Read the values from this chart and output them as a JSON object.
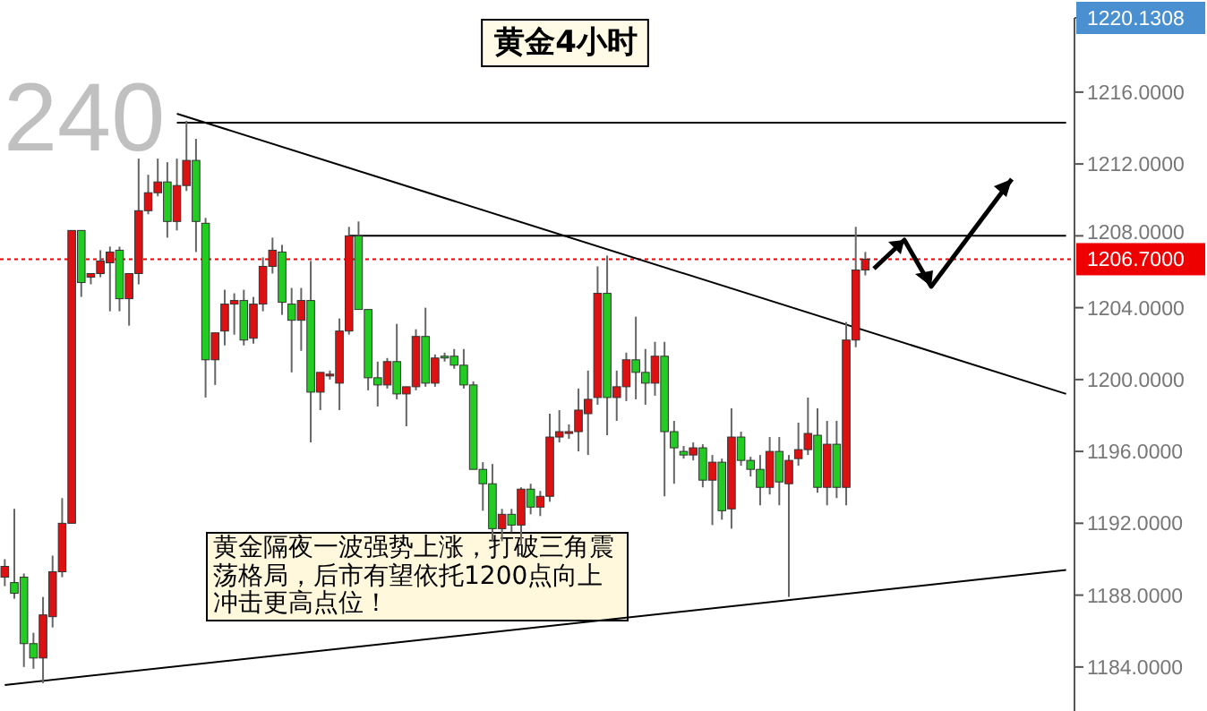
{
  "chart_data": {
    "type": "candlestick",
    "title": "黄金4小时",
    "categories": [
      null,
      null,
      null,
      null,
      null,
      null,
      null,
      null,
      null,
      null,
      null,
      null,
      null,
      null,
      null,
      null,
      null,
      null,
      null,
      null,
      null,
      null,
      null,
      null,
      null,
      null,
      null,
      null,
      null,
      null,
      null,
      null,
      null,
      null,
      null,
      null,
      null,
      null,
      null,
      null,
      null,
      null,
      null,
      null,
      null,
      null,
      null,
      null,
      null,
      null,
      null,
      null,
      null,
      null,
      null,
      null,
      null,
      null,
      null,
      null,
      null,
      null,
      null,
      null,
      null,
      null,
      null,
      null,
      null,
      null,
      null,
      null,
      null,
      null,
      null,
      null,
      null,
      null,
      null,
      null,
      null,
      null,
      null,
      null,
      null,
      null,
      null,
      null,
      null,
      null,
      null,
      null,
      null,
      null,
      null,
      null,
      null,
      null,
      null,
      null,
      null,
      null,
      null,
      null,
      null,
      null,
      null,
      null,
      null,
      null,
      null,
      null
    ],
    "ohlc": [
      [
        1189.0,
        1190.0,
        1188.5,
        1189.6
      ],
      [
        1188.7,
        1192.8,
        1187.8,
        1188.1
      ],
      [
        1189.0,
        1189.2,
        1184.0,
        1185.3
      ],
      [
        1185.3,
        1185.9,
        1183.9,
        1184.5
      ],
      [
        1184.5,
        1187.9,
        1183.1,
        1186.9
      ],
      [
        1186.8,
        1190.2,
        1186.2,
        1189.3
      ],
      [
        1189.3,
        1193.4,
        1189.0,
        1192.0
      ],
      [
        1192.0,
        1208.3,
        1192.0,
        1208.3
      ],
      [
        1208.3,
        1208.3,
        1204.6,
        1205.4
      ],
      [
        1205.7,
        1205.9,
        1205.3,
        1205.9
      ],
      [
        1205.9,
        1207.2,
        1205.7,
        1206.6
      ],
      [
        1206.5,
        1207.4,
        1203.8,
        1207.1
      ],
      [
        1207.2,
        1207.4,
        1203.8,
        1204.5
      ],
      [
        1204.5,
        1205.9,
        1203.0,
        1205.9
      ],
      [
        1205.9,
        1212.3,
        1205.3,
        1209.4
      ],
      [
        1209.4,
        1211.4,
        1209.2,
        1210.4
      ],
      [
        1210.4,
        1212.3,
        1210.2,
        1211.0
      ],
      [
        1211.0,
        1212.1,
        1207.9,
        1208.8
      ],
      [
        1208.8,
        1212.3,
        1208.3,
        1210.8
      ],
      [
        1210.8,
        1214.4,
        1210.5,
        1212.2
      ],
      [
        1212.2,
        1213.4,
        1207.1,
        1208.8
      ],
      [
        1208.7,
        1209.0,
        1199.0,
        1201.1
      ],
      [
        1201.1,
        1202.6,
        1199.7,
        1202.6
      ],
      [
        1202.7,
        1205.0,
        1201.9,
        1204.2
      ],
      [
        1204.2,
        1204.8,
        1202.5,
        1204.4
      ],
      [
        1204.4,
        1205.0,
        1201.9,
        1202.2
      ],
      [
        1202.3,
        1204.6,
        1202.0,
        1204.2
      ],
      [
        1204.2,
        1206.8,
        1203.8,
        1206.3
      ],
      [
        1206.3,
        1207.9,
        1205.9,
        1207.2
      ],
      [
        1207.1,
        1207.5,
        1203.6,
        1204.3
      ],
      [
        1204.2,
        1205.1,
        1200.4,
        1203.3
      ],
      [
        1203.3,
        1205.1,
        1201.6,
        1204.4
      ],
      [
        1204.4,
        1206.6,
        1196.5,
        1199.3
      ],
      [
        1199.3,
        1200.4,
        1198.3,
        1200.4
      ],
      [
        1200.2,
        1200.5,
        1200.0,
        1200.3
      ],
      [
        1199.8,
        1203.4,
        1198.3,
        1202.7
      ],
      [
        1202.7,
        1208.5,
        1202.5,
        1208.0
      ],
      [
        1208.0,
        1208.8,
        1203.9,
        1203.9
      ],
      [
        1203.9,
        1203.9,
        1199.4,
        1200.1
      ],
      [
        1200.1,
        1201.0,
        1198.5,
        1199.7
      ],
      [
        1199.7,
        1201.2,
        1199.5,
        1201.0
      ],
      [
        1201.0,
        1203.1,
        1198.9,
        1199.2
      ],
      [
        1199.2,
        1199.6,
        1197.4,
        1199.6
      ],
      [
        1199.6,
        1202.8,
        1199.4,
        1202.4
      ],
      [
        1202.4,
        1204.0,
        1199.6,
        1199.8
      ],
      [
        1199.8,
        1201.4,
        1199.6,
        1201.2
      ],
      [
        1201.3,
        1201.5,
        1201.0,
        1201.3
      ],
      [
        1201.3,
        1201.7,
        1200.6,
        1200.8
      ],
      [
        1200.8,
        1201.7,
        1199.5,
        1199.7
      ],
      [
        1199.7,
        1199.9,
        1195.0,
        1195.0
      ],
      [
        1195.0,
        1195.4,
        1192.7,
        1194.2
      ],
      [
        1194.2,
        1195.3,
        1191.0,
        1191.7
      ],
      [
        1191.7,
        1192.8,
        1191.0,
        1192.5
      ],
      [
        1192.5,
        1192.8,
        1191.5,
        1191.9
      ],
      [
        1191.9,
        1194.0,
        1190.8,
        1193.9
      ],
      [
        1193.9,
        1194.2,
        1192.5,
        1192.9
      ],
      [
        1192.9,
        1193.8,
        1192.4,
        1193.5
      ],
      [
        1193.5,
        1198.1,
        1193.2,
        1196.8
      ],
      [
        1196.8,
        1198.3,
        1196.5,
        1197.1
      ],
      [
        1197.1,
        1197.5,
        1196.7,
        1197.1
      ],
      [
        1197.1,
        1199.5,
        1196.0,
        1198.3
      ],
      [
        1198.1,
        1200.5,
        1195.8,
        1198.9
      ],
      [
        1199.0,
        1206.3,
        1198.6,
        1204.8
      ],
      [
        1204.8,
        1206.9,
        1196.9,
        1199.0
      ],
      [
        1199.0,
        1200.5,
        1197.7,
        1199.6
      ],
      [
        1199.6,
        1201.5,
        1198.8,
        1201.1
      ],
      [
        1201.1,
        1203.5,
        1198.9,
        1200.4
      ],
      [
        1200.4,
        1201.7,
        1198.6,
        1199.8
      ],
      [
        1199.8,
        1202.1,
        1199.1,
        1201.3
      ],
      [
        1201.3,
        1202.1,
        1193.5,
        1197.1
      ],
      [
        1197.1,
        1197.7,
        1194.2,
        1196.2
      ],
      [
        1196.0,
        1196.3,
        1195.6,
        1195.8
      ],
      [
        1195.8,
        1196.5,
        1195.5,
        1196.2
      ],
      [
        1196.2,
        1196.4,
        1194.0,
        1194.4
      ],
      [
        1194.4,
        1195.8,
        1191.9,
        1195.4
      ],
      [
        1195.4,
        1195.6,
        1192.2,
        1192.7
      ],
      [
        1192.8,
        1198.4,
        1191.7,
        1196.8
      ],
      [
        1196.8,
        1197.1,
        1195.2,
        1195.5
      ],
      [
        1195.5,
        1195.7,
        1194.6,
        1195.0
      ],
      [
        1195.0,
        1195.8,
        1193.0,
        1194.0
      ],
      [
        1194.0,
        1196.8,
        1193.6,
        1196.0
      ],
      [
        1196.0,
        1196.8,
        1193.0,
        1194.3
      ],
      [
        1194.2,
        1195.8,
        1187.9,
        1195.5
      ],
      [
        1195.6,
        1197.6,
        1195.2,
        1196.1
      ],
      [
        1196.1,
        1199.0,
        1195.8,
        1197.0
      ],
      [
        1196.9,
        1198.4,
        1193.7,
        1194.0
      ],
      [
        1194.0,
        1197.7,
        1193.0,
        1196.4
      ],
      [
        1196.4,
        1197.7,
        1193.4,
        1194.0
      ],
      [
        1194.0,
        1203.2,
        1193.0,
        1202.2
      ],
      [
        1202.2,
        1208.5,
        1201.8,
        1206.1
      ],
      [
        1206.1,
        1207.1,
        1205.8,
        1206.7
      ],
      null,
      null,
      null,
      null,
      null,
      null,
      null,
      null,
      null,
      null,
      null,
      null,
      null,
      null,
      null,
      null,
      null,
      null,
      null,
      null,
      null
    ],
    "colors": [
      "#dd1111",
      "#22cc22",
      "#22cc22",
      "#22cc22",
      "#dd1111",
      "#dd1111",
      "#dd1111",
      "#dd1111",
      "#22cc22",
      "#dd1111",
      "#dd1111",
      "#dd1111",
      "#22cc22",
      "#dd1111",
      "#dd1111",
      "#dd1111",
      "#dd1111",
      "#22cc22",
      "#dd1111",
      "#dd1111",
      "#22cc22",
      "#22cc22",
      "#dd1111",
      "#dd1111",
      "#dd1111",
      "#22cc22",
      "#dd1111",
      "#dd1111",
      "#dd1111",
      "#22cc22",
      "#22cc22",
      "#dd1111",
      "#22cc22",
      "#dd1111",
      "#dd1111",
      "#dd1111",
      "#dd1111",
      "#22cc22",
      "#22cc22",
      "#22cc22",
      "#dd1111",
      "#22cc22",
      "#dd1111",
      "#dd1111",
      "#22cc22",
      "#dd1111",
      "#22cc22",
      "#22cc22",
      "#22cc22",
      "#22cc22",
      "#22cc22",
      "#22cc22",
      "#dd1111",
      "#22cc22",
      "#dd1111",
      "#22cc22",
      "#dd1111",
      "#dd1111",
      "#dd1111",
      "#dd1111",
      "#dd1111",
      "#dd1111",
      "#dd1111",
      "#22cc22",
      "#dd1111",
      "#dd1111",
      "#22cc22",
      "#22cc22",
      "#dd1111",
      "#22cc22",
      "#22cc22",
      "#22cc22",
      "#dd1111",
      "#22cc22",
      "#dd1111",
      "#22cc22",
      "#dd1111",
      "#22cc22",
      "#22cc22",
      "#22cc22",
      "#dd1111",
      "#22cc22",
      "#dd1111",
      "#dd1111",
      "#dd1111",
      "#22cc22",
      "#dd1111",
      "#22cc22",
      "#dd1111",
      "#dd1111",
      "#dd1111",
      null,
      null,
      null,
      null,
      null,
      null,
      null,
      null,
      null,
      null,
      null,
      null,
      null,
      null,
      null,
      null,
      null,
      null,
      null,
      null,
      null
    ],
    "series": [
      {
        "type": "line",
        "values": [
          null,
          null,
          null,
          null,
          null,
          null,
          null,
          null,
          null,
          null,
          null,
          null,
          null,
          null,
          null,
          null,
          null,
          null,
          1214.8,
          null,
          null,
          null,
          null,
          null,
          null,
          null,
          null,
          null,
          null,
          null,
          null,
          null,
          null,
          null,
          null,
          null,
          null,
          null,
          null,
          null,
          null,
          null,
          null,
          null,
          null,
          null,
          null,
          null,
          null,
          null,
          null,
          null,
          null,
          null,
          null,
          null,
          null,
          null,
          null,
          null,
          null,
          null,
          null,
          null,
          null,
          null,
          null,
          null,
          null,
          null,
          null,
          null,
          null,
          null,
          null,
          null,
          null,
          null,
          null,
          null,
          null,
          null,
          null,
          null,
          null,
          null,
          null,
          null,
          null,
          null,
          null,
          null,
          null,
          null,
          null,
          null,
          null,
          null,
          null,
          null,
          null,
          null,
          null,
          null,
          null,
          null,
          null,
          null,
          null,
          null,
          null,
          1199.2
        ],
        "color": "#000000"
      },
      {
        "type": "line",
        "values": [
          1183.0,
          null,
          null,
          null,
          null,
          null,
          null,
          null,
          null,
          null,
          null,
          null,
          null,
          null,
          null,
          null,
          null,
          null,
          null,
          null,
          null,
          null,
          null,
          null,
          null,
          null,
          null,
          null,
          null,
          null,
          null,
          null,
          null,
          null,
          null,
          null,
          null,
          null,
          null,
          null,
          null,
          null,
          null,
          null,
          null,
          null,
          null,
          null,
          null,
          null,
          null,
          null,
          null,
          null,
          null,
          null,
          null,
          null,
          null,
          null,
          null,
          null,
          null,
          null,
          null,
          null,
          null,
          null,
          null,
          null,
          null,
          null,
          null,
          null,
          null,
          null,
          null,
          null,
          null,
          null,
          null,
          null,
          null,
          null,
          null,
          null,
          null,
          null,
          null,
          null,
          null,
          null,
          null,
          null,
          null,
          null,
          null,
          null,
          null,
          null,
          null,
          null,
          null,
          null,
          null,
          null,
          null,
          null,
          null,
          null,
          null,
          1189.4
        ],
        "color": "#000000"
      },
      {
        "type": "line",
        "values": [
          null,
          null,
          null,
          null,
          null,
          null,
          null,
          null,
          null,
          null,
          null,
          null,
          null,
          null,
          null,
          null,
          null,
          null,
          1214.3,
          null,
          null,
          null,
          null,
          null,
          null,
          null,
          null,
          null,
          null,
          null,
          null,
          null,
          null,
          null,
          null,
          null,
          null,
          null,
          null,
          null,
          null,
          null,
          null,
          null,
          null,
          null,
          null,
          null,
          null,
          null,
          null,
          null,
          null,
          null,
          null,
          null,
          null,
          null,
          null,
          null,
          null,
          null,
          null,
          null,
          null,
          null,
          null,
          null,
          null,
          null,
          null,
          null,
          null,
          null,
          null,
          null,
          null,
          null,
          null,
          null,
          null,
          null,
          null,
          null,
          null,
          null,
          null,
          null,
          null,
          null,
          null,
          null,
          null,
          null,
          null,
          null,
          null,
          null,
          null,
          null,
          null,
          null,
          null,
          null,
          null,
          null,
          null,
          null,
          null,
          null,
          null,
          1214.3
        ],
        "color": "#000000"
      },
      {
        "type": "line",
        "values": [
          null,
          null,
          null,
          null,
          null,
          null,
          null,
          null,
          null,
          null,
          null,
          null,
          null,
          null,
          null,
          null,
          null,
          null,
          null,
          null,
          null,
          null,
          null,
          null,
          null,
          null,
          null,
          null,
          null,
          null,
          null,
          null,
          null,
          null,
          null,
          null,
          1208.0,
          null,
          null,
          null,
          null,
          null,
          null,
          null,
          null,
          null,
          null,
          null,
          null,
          null,
          null,
          null,
          null,
          null,
          null,
          null,
          null,
          null,
          null,
          null,
          null,
          null,
          null,
          null,
          null,
          null,
          null,
          null,
          null,
          null,
          null,
          null,
          null,
          null,
          null,
          null,
          null,
          null,
          null,
          null,
          null,
          null,
          null,
          null,
          null,
          null,
          null,
          null,
          null,
          null,
          null,
          null,
          null,
          null,
          null,
          null,
          null,
          null,
          null,
          null,
          null,
          null,
          null,
          null,
          null,
          null,
          null,
          null,
          null,
          null,
          null,
          1208.0
        ],
        "color": "#000000"
      }
    ],
    "ref_lines": [
      {
        "axis": "y",
        "value": 1206.7,
        "label": "1206.7000",
        "color": "#ee0000",
        "line_style": "dotted"
      }
    ],
    "ylim": [
      1181.55,
      1220.1308
    ],
    "yticks": [
      {
        "value": 1184,
        "label": "1184.0000"
      },
      {
        "value": 1188,
        "label": "1188.0000"
      },
      {
        "value": 1192,
        "label": "1192.0000"
      },
      {
        "value": 1196,
        "label": "1196.0000"
      },
      {
        "value": 1200,
        "label": "1200.0000"
      },
      {
        "value": 1204,
        "label": "1204.0000"
      },
      {
        "value": 1208,
        "label": "1208.0000"
      },
      {
        "value": 1212,
        "label": "1212.0000"
      },
      {
        "value": 1216,
        "label": "1216.0000"
      },
      {
        "value": 1220.1308,
        "label": "1220.1308"
      }
    ],
    "annotations": [
      "240",
      "黄金隔夜一波强势上涨，打破三角震荡格局，后市有望依托1200点向上冲击更高点位！"
    ]
  }
}
